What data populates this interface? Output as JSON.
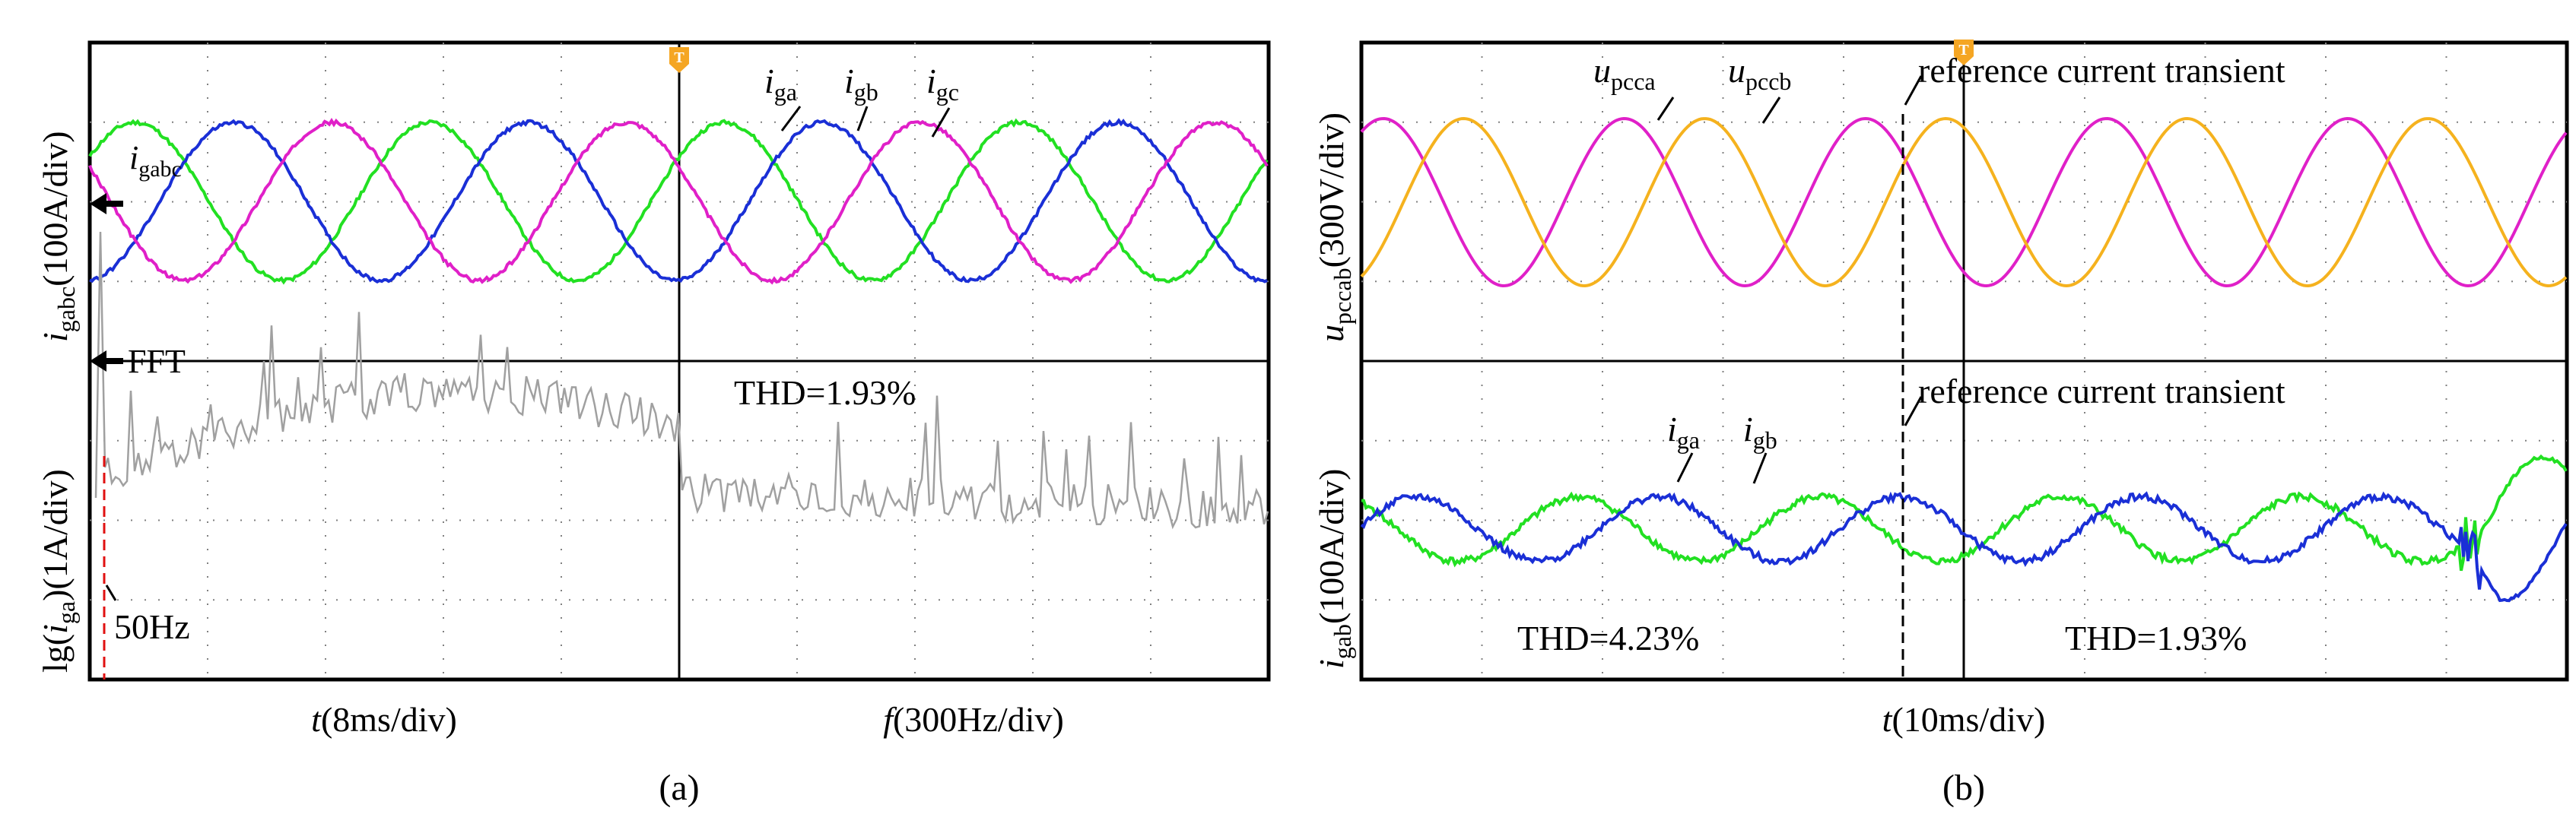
{
  "colors": {
    "phase_a": "#22e022",
    "phase_b": "#1a2fd6",
    "phase_c": "#e020c8",
    "pcc_a": "#e020c8",
    "pcc_b": "#f5b21e",
    "fft": "#a0a0a0",
    "fundamental_marker": "#e01010",
    "grid": "#808080",
    "trigger": "#f5a623"
  },
  "icons": {
    "trigger": "trigger-T-icon",
    "ground_arrow": "left-arrow-icon"
  },
  "panel_a": {
    "caption": "(a)",
    "ylabel_top_var": "i",
    "ylabel_top_sub": "gabc",
    "ylabel_top_unit": "(100A/div)",
    "ylabel_bottom_pre": "lg(",
    "ylabel_bottom_var": "i",
    "ylabel_bottom_sub": "ga",
    "ylabel_bottom_unit": ")(1A/div)",
    "xlabel_left_var": "t",
    "xlabel_left_unit": "(8ms/div)",
    "xlabel_right_var": "f",
    "xlabel_right_unit": "(300Hz/div)",
    "marker_igabc_var": "i",
    "marker_igabc_sub": "gabc",
    "marker_fft": "FFT",
    "label_iga_var": "i",
    "label_iga_sub": "ga",
    "label_igb_var": "i",
    "label_igb_sub": "gb",
    "label_igc_var": "i",
    "label_igc_sub": "gc",
    "thd": "THD=1.93%",
    "fundamental_label": "50Hz",
    "trigger": "T"
  },
  "panel_b": {
    "caption": "(b)",
    "ylabel_top_var": "u",
    "ylabel_top_sub": "pccab",
    "ylabel_top_unit": "(300V/div)",
    "ylabel_bottom_var": "i",
    "ylabel_bottom_sub": "gab",
    "ylabel_bottom_unit": "(100A/div)",
    "xlabel_var": "t",
    "xlabel_unit": "(10ms/div)",
    "label_upcca_var": "u",
    "label_upcca_sub": "pcca",
    "label_upccb_var": "u",
    "label_upccb_sub": "pccb",
    "label_iga_var": "i",
    "label_iga_sub": "ga",
    "label_igb_var": "i",
    "label_igb_sub": "gb",
    "transient_top": "reference current transient",
    "transient_bottom": "reference current transient",
    "thd_before": "THD=4.23%",
    "thd_after": "THD=1.93%",
    "trigger": "T"
  },
  "chart_data": [
    {
      "type": "line",
      "title": "",
      "panel": "(a) top",
      "xlabel": "t(8ms/div)",
      "ylabel": "igabc(100A/div)",
      "grid": true,
      "divisions": {
        "x": 10,
        "y": 4
      },
      "series": [
        {
          "name": "iga",
          "color": "#22e022",
          "amplitude_div": 1.6,
          "period_div": 2.5,
          "phase_deg": 0,
          "offset_div": 0
        },
        {
          "name": "igb",
          "color": "#1a2fd6",
          "amplitude_div": 1.6,
          "period_div": 2.5,
          "phase_deg": -120,
          "offset_div": 0
        },
        {
          "name": "igc",
          "color": "#e020c8",
          "amplitude_div": 1.6,
          "period_div": 2.5,
          "phase_deg": 120,
          "offset_div": 0
        }
      ]
    },
    {
      "type": "line",
      "title": "",
      "panel": "(a) bottom",
      "xlabel": "f(300Hz/div)",
      "ylabel": "lg(iga)(1A/div)",
      "grid": true,
      "divisions": {
        "x": 20,
        "y": 4
      },
      "annotations": [
        "THD=1.93%",
        "50Hz"
      ],
      "series": [
        {
          "name": "FFT of iga",
          "color": "#a0a0a0",
          "fundamental_hz": 50,
          "fundamental_level_div": 4.0,
          "noise_floor_div": [
            1.2,
            1.8,
            2.4,
            1.1
          ]
        }
      ]
    },
    {
      "type": "line",
      "title": "",
      "panel": "(b) top",
      "xlabel": "t(10ms/div)",
      "ylabel": "upccab(300V/div)",
      "grid": true,
      "divisions": {
        "x": 10,
        "y": 4
      },
      "series": [
        {
          "name": "upcca",
          "color": "#e020c8",
          "amplitude_div": 1.05,
          "period_div": 2.0,
          "phase_deg": 0,
          "offset_div": 0.15
        },
        {
          "name": "upccb",
          "color": "#f5b21e",
          "amplitude_div": 1.05,
          "period_div": 2.0,
          "phase_deg": -120,
          "offset_div": 0.15
        }
      ]
    },
    {
      "type": "line",
      "title": "",
      "panel": "(b) bottom",
      "xlabel": "t(10ms/div)",
      "ylabel": "igab(100A/div)",
      "grid": true,
      "divisions": {
        "x": 10,
        "y": 4
      },
      "transient_x_div": 9.2,
      "annotations": [
        "THD=4.23%",
        "THD=1.93%",
        "reference current transient"
      ],
      "series": [
        {
          "name": "iga",
          "color": "#22e022",
          "period_div": 2.0,
          "phase_deg": 0,
          "amplitude_before_div": 0.45,
          "amplitude_after_div": 1.0,
          "offset_div": -0.4
        },
        {
          "name": "igb",
          "color": "#1a2fd6",
          "period_div": 2.0,
          "phase_deg": -120,
          "amplitude_before_div": 0.45,
          "amplitude_after_div": 1.0,
          "offset_div": -0.4
        }
      ]
    }
  ]
}
